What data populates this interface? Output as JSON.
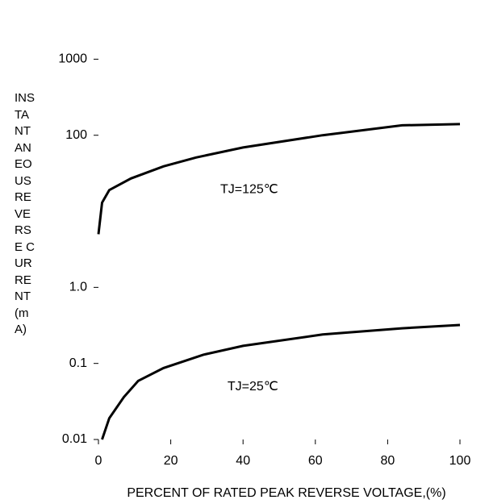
{
  "chart_data": {
    "type": "line",
    "xlabel": "PERCENT OF RATED PEAK REVERSE VOLTAGE,(%)",
    "ylabel": "INSTANTANEOUS REVERSE CURRENT(mA)",
    "log_y": true,
    "xlim": [
      0,
      100
    ],
    "xticks": [
      0,
      20,
      40,
      60,
      80,
      100
    ],
    "ylim": [
      0.01,
      2000
    ],
    "yticks": [
      0.01,
      0.1,
      {
        "value": 1,
        "label": "1.0"
      },
      100,
      1000
    ],
    "series": [
      {
        "name": "TJ=125℃",
        "color": "#000000",
        "x": [
          0,
          1,
          3,
          9,
          18,
          27,
          40,
          62,
          84,
          100
        ],
        "values": [
          5,
          13,
          19,
          27,
          39,
          51,
          69,
          100,
          135,
          140
        ]
      },
      {
        "name": "TJ=25℃",
        "color": "#000000",
        "x": [
          1,
          3,
          7,
          11,
          18,
          29,
          40,
          62,
          84,
          100
        ],
        "values": [
          0.01,
          0.019,
          0.036,
          0.059,
          0.087,
          0.13,
          0.17,
          0.24,
          0.29,
          0.32
        ]
      }
    ]
  }
}
